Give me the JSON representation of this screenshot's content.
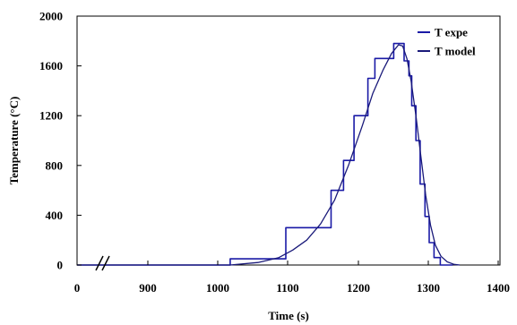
{
  "chart_data": {
    "type": "line",
    "xlabel": "Time (s)",
    "ylabel": "Temperature (°C)",
    "x_ticks": [
      "0",
      "900",
      "1000",
      "1100",
      "1200",
      "1300",
      "1400"
    ],
    "y_ticks": [
      "0",
      "400",
      "800",
      "1200",
      "1600",
      "2000"
    ],
    "ylim": [
      0,
      2000
    ],
    "xlim": [
      800,
      1400
    ],
    "x_axis_break": true,
    "grid": false,
    "legend_position": "top-right",
    "series": [
      {
        "name": "T expe",
        "style": "step",
        "color": "#1a1aa6",
        "points": [
          [
            800,
            0
          ],
          [
            1020,
            0
          ],
          [
            1020,
            50
          ],
          [
            1100,
            50
          ],
          [
            1100,
            300
          ],
          [
            1165,
            300
          ],
          [
            1165,
            600
          ],
          [
            1183,
            600
          ],
          [
            1183,
            840
          ],
          [
            1198,
            840
          ],
          [
            1198,
            1200
          ],
          [
            1218,
            1200
          ],
          [
            1218,
            1500
          ],
          [
            1228,
            1500
          ],
          [
            1228,
            1660
          ],
          [
            1255,
            1660
          ],
          [
            1255,
            1780
          ],
          [
            1270,
            1780
          ],
          [
            1270,
            1640
          ],
          [
            1277,
            1640
          ],
          [
            1277,
            1520
          ],
          [
            1281,
            1520
          ],
          [
            1281,
            1280
          ],
          [
            1287,
            1280
          ],
          [
            1287,
            1000
          ],
          [
            1293,
            1000
          ],
          [
            1293,
            650
          ],
          [
            1300,
            650
          ],
          [
            1300,
            390
          ],
          [
            1306,
            390
          ],
          [
            1306,
            180
          ],
          [
            1313,
            180
          ],
          [
            1313,
            60
          ],
          [
            1322,
            60
          ],
          [
            1322,
            0
          ],
          [
            1340,
            0
          ]
        ]
      },
      {
        "name": "T model",
        "style": "smooth",
        "color": "#1a1a7a",
        "points": [
          [
            800,
            0
          ],
          [
            1020,
            0
          ],
          [
            1060,
            20
          ],
          [
            1090,
            60
          ],
          [
            1110,
            120
          ],
          [
            1130,
            200
          ],
          [
            1150,
            330
          ],
          [
            1170,
            520
          ],
          [
            1190,
            800
          ],
          [
            1210,
            1120
          ],
          [
            1225,
            1380
          ],
          [
            1240,
            1570
          ],
          [
            1252,
            1700
          ],
          [
            1262,
            1770
          ],
          [
            1268,
            1760
          ],
          [
            1274,
            1660
          ],
          [
            1280,
            1480
          ],
          [
            1287,
            1200
          ],
          [
            1294,
            880
          ],
          [
            1301,
            560
          ],
          [
            1308,
            320
          ],
          [
            1315,
            160
          ],
          [
            1323,
            70
          ],
          [
            1332,
            25
          ],
          [
            1342,
            5
          ],
          [
            1350,
            0
          ]
        ]
      }
    ]
  }
}
